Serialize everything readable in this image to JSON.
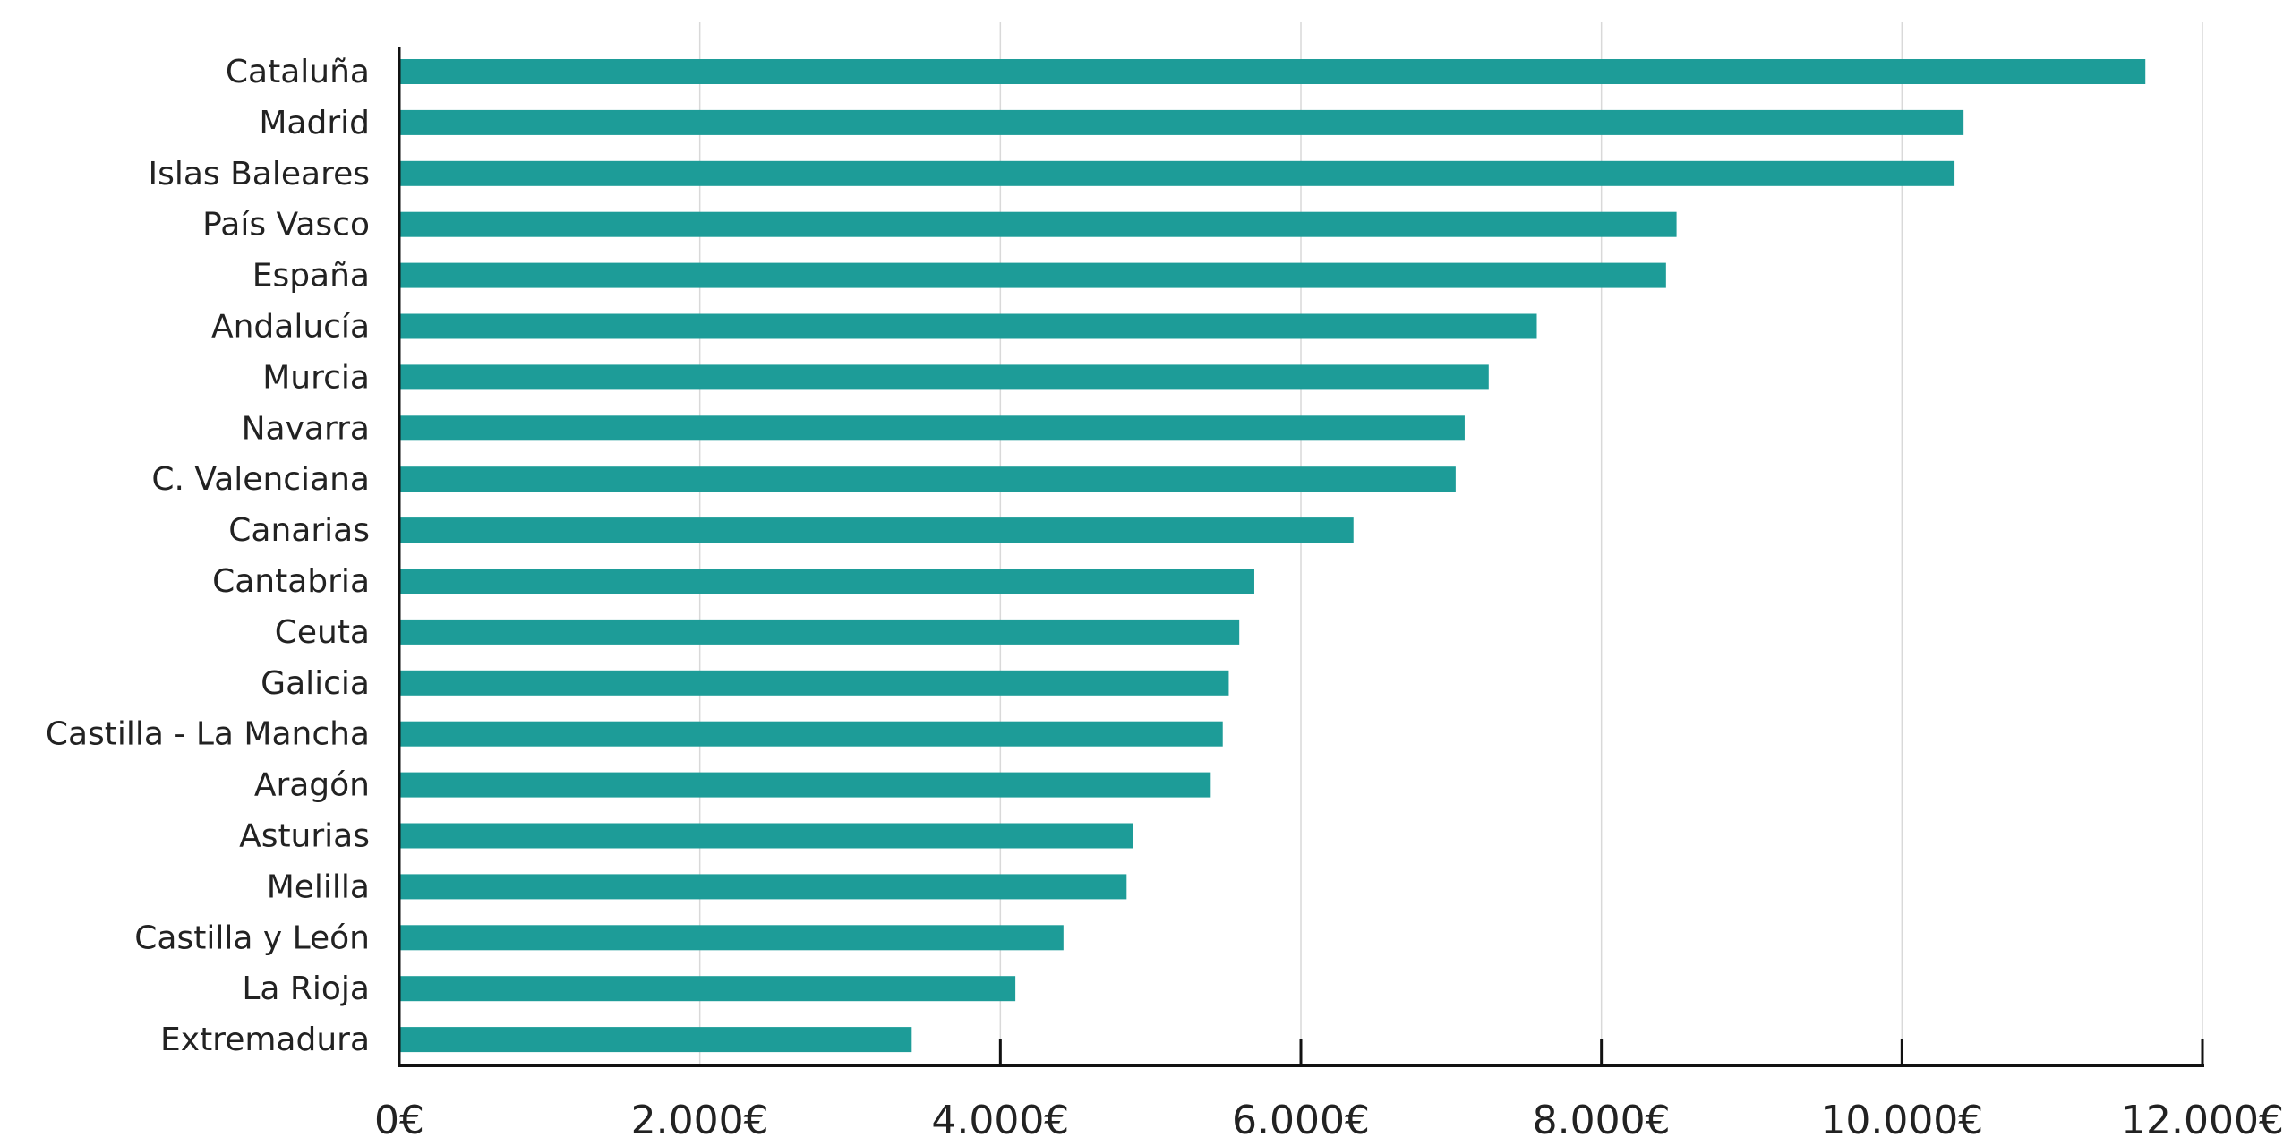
{
  "chart_data": {
    "type": "bar",
    "orientation": "horizontal",
    "title": "",
    "xlabel": "",
    "ylabel": "",
    "xlim": [
      0,
      12000
    ],
    "grid": true,
    "bar_color": "#1d9c98",
    "categories": [
      "Cataluña",
      "Madrid",
      "Islas Baleares",
      "País Vasco",
      "España",
      "Andalucía",
      "Murcia",
      "Navarra",
      "C. Valenciana",
      "Canarias",
      "Cantabria",
      "Ceuta",
      "Galicia",
      "Castilla - La Mancha",
      "Aragón",
      "Asturias",
      "Melilla",
      "Castilla y León",
      "La Rioja",
      "Extremadura"
    ],
    "values": [
      11620,
      10410,
      10350,
      8500,
      8430,
      7570,
      7250,
      7090,
      7030,
      6350,
      5690,
      5590,
      5520,
      5480,
      5400,
      4880,
      4840,
      4420,
      4100,
      3410
    ],
    "x_ticks": [
      0,
      2000,
      4000,
      6000,
      8000,
      10000,
      12000
    ],
    "x_tick_labels": [
      "0€",
      "2.000€",
      "4.000€",
      "6.000€",
      "8.000€",
      "10.000€",
      "12.000€"
    ]
  }
}
